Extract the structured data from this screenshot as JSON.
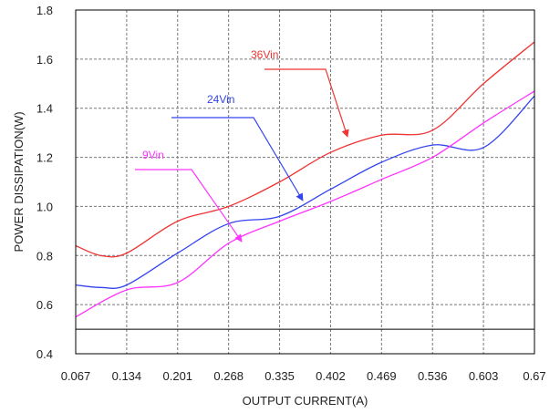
{
  "chart_data": {
    "type": "line",
    "xlabel": "OUTPUT CURRENT(A)",
    "ylabel": "POWER DISSIPATION(W)",
    "xlim": [
      0.067,
      0.67
    ],
    "ylim": [
      0.4,
      1.8
    ],
    "x_ticks": [
      "0.067",
      "0.134",
      "0.201",
      "0.268",
      "0.335",
      "0.402",
      "0.469",
      "0.536",
      "0.603",
      "0.67"
    ],
    "y_ticks": [
      "0.4",
      "0.6",
      "0.8",
      "1.0",
      "1.2",
      "1.4",
      "1.6",
      "1.8"
    ],
    "grid": true,
    "series": [
      {
        "name": "36Vin",
        "color": "#ee3333",
        "x": [
          0.067,
          0.1,
          0.134,
          0.201,
          0.268,
          0.335,
          0.402,
          0.469,
          0.536,
          0.603,
          0.67
        ],
        "y": [
          0.84,
          0.8,
          0.81,
          0.94,
          1.0,
          1.1,
          1.22,
          1.29,
          1.31,
          1.5,
          1.67
        ]
      },
      {
        "name": "24Vin",
        "color": "#3344ee",
        "x": [
          0.067,
          0.1,
          0.134,
          0.201,
          0.268,
          0.335,
          0.402,
          0.469,
          0.536,
          0.603,
          0.67
        ],
        "y": [
          0.68,
          0.67,
          0.68,
          0.81,
          0.93,
          0.96,
          1.07,
          1.18,
          1.25,
          1.24,
          1.45
        ]
      },
      {
        "name": "9Vin",
        "color": "#ff33ff",
        "x": [
          0.067,
          0.134,
          0.201,
          0.268,
          0.335,
          0.402,
          0.469,
          0.536,
          0.603,
          0.67
        ],
        "y": [
          0.55,
          0.66,
          0.69,
          0.85,
          0.94,
          1.02,
          1.11,
          1.2,
          1.34,
          1.47
        ]
      }
    ],
    "annotations": [
      {
        "series": "36Vin",
        "label": "36Vin"
      },
      {
        "series": "24Vin",
        "label": "24Vin"
      },
      {
        "series": "9Vin",
        "label": "9Vin"
      }
    ]
  }
}
